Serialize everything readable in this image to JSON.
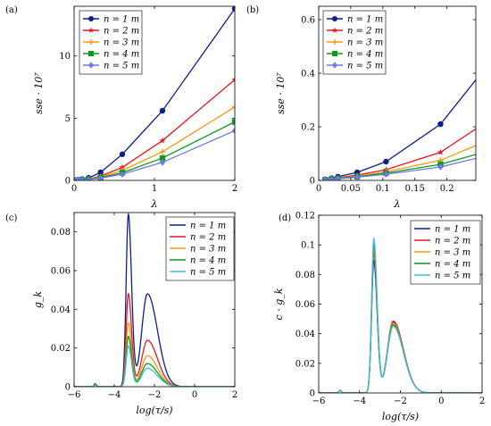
{
  "chart_data": [
    {
      "panel": "(a)",
      "type": "line",
      "xlabel": "λ",
      "ylabel": "sse · 10⁷",
      "xlim": [
        0,
        2
      ],
      "ylim": [
        0,
        14
      ],
      "xticks": [
        0,
        1,
        2
      ],
      "yticks": [
        0,
        5,
        10
      ],
      "legend": "top-left",
      "grid": false,
      "series": [
        {
          "name": "n = 1 m",
          "color": "#0b1f8a",
          "marker": "circle",
          "x": [
            0.02,
            0.05,
            0.1,
            0.18,
            0.33,
            0.6,
            1.1,
            2.0
          ],
          "y": [
            0.02,
            0.05,
            0.1,
            0.2,
            0.65,
            2.1,
            5.6,
            13.8
          ]
        },
        {
          "name": "n = 2 m",
          "color": "#e8181c",
          "marker": "star",
          "x": [
            0.02,
            0.05,
            0.1,
            0.18,
            0.33,
            0.6,
            1.1,
            2.0
          ],
          "y": [
            0.01,
            0.03,
            0.06,
            0.12,
            0.35,
            1.05,
            3.2,
            8.1
          ]
        },
        {
          "name": "n = 3 m",
          "color": "#f59a16",
          "marker": "plus",
          "x": [
            0.02,
            0.05,
            0.1,
            0.18,
            0.33,
            0.6,
            1.1,
            2.0
          ],
          "y": [
            0.01,
            0.02,
            0.05,
            0.1,
            0.28,
            0.8,
            2.3,
            5.9
          ]
        },
        {
          "name": "n = 4 m",
          "color": "#0c9a1a",
          "marker": "square",
          "x": [
            0.02,
            0.05,
            0.1,
            0.18,
            0.33,
            0.6,
            1.1,
            2.0
          ],
          "y": [
            0.01,
            0.02,
            0.04,
            0.08,
            0.22,
            0.62,
            1.8,
            4.7
          ]
        },
        {
          "name": "n = 5 m",
          "color": "#6d78ee",
          "marker": "diamond",
          "x": [
            0.02,
            0.05,
            0.1,
            0.18,
            0.33,
            0.6,
            1.1,
            2.0
          ],
          "y": [
            0.01,
            0.02,
            0.03,
            0.06,
            0.18,
            0.5,
            1.45,
            4.0
          ]
        }
      ]
    },
    {
      "panel": "(b)",
      "type": "line",
      "xlabel": "λ",
      "ylabel": "sse · 10⁷",
      "xlim": [
        0,
        0.245
      ],
      "ylim": [
        0,
        0.65
      ],
      "xticks": [
        0,
        0.05,
        0.1,
        0.15,
        0.2
      ],
      "yticks": [
        0,
        0.2,
        0.4,
        0.6
      ],
      "legend": "top-left",
      "grid": false,
      "series": [
        {
          "name": "n = 1 m",
          "color": "#0b1f8a",
          "marker": "circle",
          "x": [
            0.01,
            0.02,
            0.03,
            0.06,
            0.105,
            0.19,
            0.25
          ],
          "y": [
            0.004,
            0.008,
            0.014,
            0.03,
            0.07,
            0.21,
            0.39
          ]
        },
        {
          "name": "n = 2 m",
          "color": "#e8181c",
          "marker": "star",
          "x": [
            0.01,
            0.02,
            0.03,
            0.06,
            0.105,
            0.19,
            0.25
          ],
          "y": [
            0.003,
            0.006,
            0.01,
            0.02,
            0.04,
            0.105,
            0.2
          ]
        },
        {
          "name": "n = 3 m",
          "color": "#f59a16",
          "marker": "plus",
          "x": [
            0.01,
            0.02,
            0.03,
            0.06,
            0.105,
            0.19,
            0.25
          ],
          "y": [
            0.002,
            0.005,
            0.008,
            0.016,
            0.032,
            0.075,
            0.135
          ]
        },
        {
          "name": "n = 4 m",
          "color": "#0c9a1a",
          "marker": "square",
          "x": [
            0.01,
            0.02,
            0.03,
            0.06,
            0.105,
            0.19,
            0.25
          ],
          "y": [
            0.002,
            0.004,
            0.007,
            0.014,
            0.027,
            0.06,
            0.1
          ]
        },
        {
          "name": "n = 5 m",
          "color": "#6d78ee",
          "marker": "diamond",
          "x": [
            0.01,
            0.02,
            0.03,
            0.06,
            0.105,
            0.19,
            0.25
          ],
          "y": [
            0.002,
            0.004,
            0.006,
            0.012,
            0.023,
            0.05,
            0.085
          ]
        }
      ]
    },
    {
      "panel": "(c)",
      "type": "line",
      "xlabel": "log(τ/s)",
      "ylabel": "g_k",
      "xlim": [
        -6,
        2
      ],
      "ylim": [
        0,
        0.09
      ],
      "xticks": [
        -6,
        -4,
        -2,
        0,
        2
      ],
      "yticks": [
        0,
        0.02,
        0.04,
        0.06,
        0.08
      ],
      "legend": "top-right",
      "grid": false,
      "series": [
        {
          "name": "n = 1 m",
          "color": "#0b1f8a",
          "peaks": [
            [
              -4.95,
              0.0015
            ],
            [
              -3.3,
              0.089
            ],
            [
              -2.35,
              0.048
            ]
          ]
        },
        {
          "name": "n = 2 m",
          "color": "#e8181c",
          "peaks": [
            [
              -4.95,
              0.0012
            ],
            [
              -3.3,
              0.048
            ],
            [
              -2.35,
              0.024
            ]
          ]
        },
        {
          "name": "n = 3 m",
          "color": "#f59a16",
          "peaks": [
            [
              -4.95,
              0.001
            ],
            [
              -3.3,
              0.033
            ],
            [
              -2.35,
              0.016
            ]
          ]
        },
        {
          "name": "n = 4 m",
          "color": "#0c9a1a",
          "peaks": [
            [
              -4.95,
              0.0009
            ],
            [
              -3.3,
              0.026
            ],
            [
              -2.35,
              0.012
            ]
          ]
        },
        {
          "name": "n = 5 m",
          "color": "#3cc1e6",
          "peaks": [
            [
              -4.95,
              0.0008
            ],
            [
              -3.3,
              0.021
            ],
            [
              -2.35,
              0.0095
            ]
          ]
        }
      ]
    },
    {
      "panel": "(d)",
      "type": "line",
      "xlabel": "log(τ/s)",
      "ylabel": "c · g_k",
      "xlim": [
        -6,
        2
      ],
      "ylim": [
        0,
        0.12
      ],
      "xticks": [
        -6,
        -4,
        -2,
        0,
        2
      ],
      "yticks": [
        0,
        0.02,
        0.04,
        0.06,
        0.08,
        0.1,
        0.12
      ],
      "legend": "top-right",
      "grid": false,
      "series": [
        {
          "name": "n = 1 m",
          "color": "#0b1f8a",
          "peaks": [
            [
              -4.95,
              0.0018
            ],
            [
              -3.3,
              0.089
            ],
            [
              -2.35,
              0.048
            ]
          ]
        },
        {
          "name": "n = 2 m",
          "color": "#e8181c",
          "peaks": [
            [
              -4.95,
              0.0018
            ],
            [
              -3.3,
              0.094
            ],
            [
              -2.35,
              0.0485
            ]
          ]
        },
        {
          "name": "n = 3 m",
          "color": "#f59a16",
          "peaks": [
            [
              -4.95,
              0.0017
            ],
            [
              -3.3,
              0.097
            ],
            [
              -2.35,
              0.047
            ]
          ]
        },
        {
          "name": "n = 4 m",
          "color": "#0c9a1a",
          "peaks": [
            [
              -4.95,
              0.0017
            ],
            [
              -3.3,
              0.1
            ],
            [
              -2.35,
              0.046
            ]
          ]
        },
        {
          "name": "n = 5 m",
          "color": "#3cc1e6",
          "peaks": [
            [
              -4.95,
              0.0016
            ],
            [
              -3.3,
              0.104
            ],
            [
              -2.35,
              0.045
            ]
          ]
        }
      ]
    }
  ]
}
